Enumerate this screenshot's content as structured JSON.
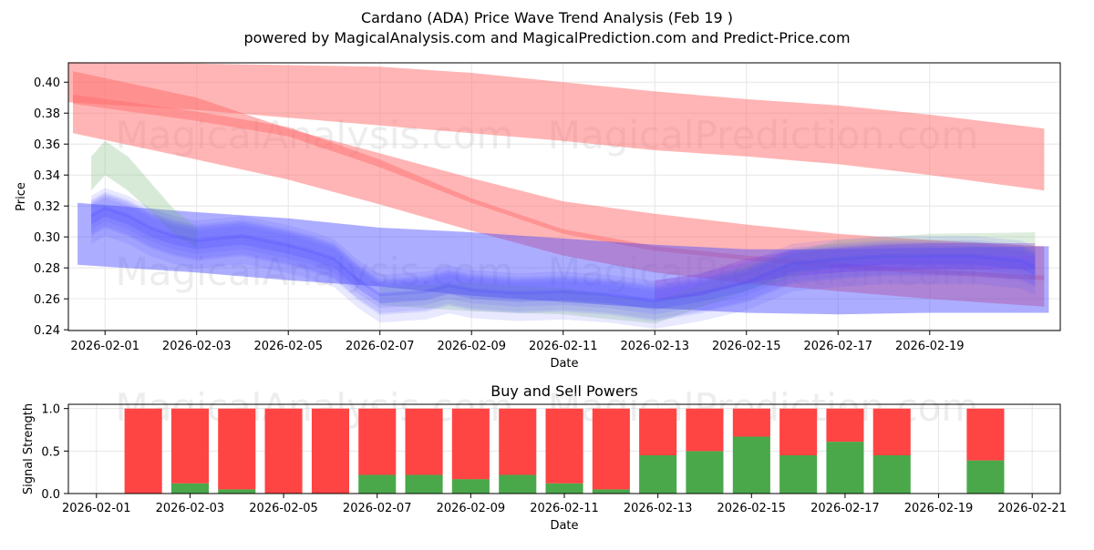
{
  "watermarks": [
    "MagicalAnalysis.com",
    "MagicalPrediction.com"
  ],
  "colors": {
    "red_band": "#ff6b6b",
    "blue_band": "#4a4aff",
    "green_band": "#7cbb7c",
    "buy": "#4aa84a",
    "sell": "#ff4444"
  },
  "chart_data": [
    {
      "type": "area",
      "title": "Cardano (ADA) Price Wave Trend Analysis (Feb 19 )",
      "subtitle": "powered by MagicalAnalysis.com and MagicalPrediction.com and Predict-Price.com",
      "xlabel": "Date",
      "ylabel": "Price",
      "x_tick_labels": [
        "2026-02-01",
        "2026-02-03",
        "2026-02-05",
        "2026-02-07",
        "2026-02-09",
        "2026-02-11",
        "2026-02-13",
        "2026-02-15",
        "2026-02-17",
        "2026-02-19"
      ],
      "y_tick_labels": [
        "0.24",
        "0.26",
        "0.28",
        "0.30",
        "0.32",
        "0.34",
        "0.36",
        "0.38",
        "0.40"
      ],
      "xlim": [
        -0.8,
        20.85
      ],
      "ylim": [
        0.2395,
        0.4125
      ],
      "grid": true,
      "bands": [
        {
          "name": "red upper",
          "color": "red",
          "opacity": 0.5,
          "x": [
            -0.8,
            2,
            4,
            6,
            8,
            10,
            12,
            14,
            16,
            18,
            20.5
          ],
          "upper": [
            0.413,
            0.412,
            0.411,
            0.41,
            0.406,
            0.4,
            0.394,
            0.389,
            0.385,
            0.379,
            0.37
          ],
          "lower": [
            0.387,
            0.382,
            0.377,
            0.372,
            0.367,
            0.362,
            0.356,
            0.352,
            0.347,
            0.34,
            0.33
          ]
        },
        {
          "name": "red lower",
          "color": "red",
          "opacity": 0.5,
          "x": [
            -0.7,
            2,
            4,
            6,
            8,
            10,
            12,
            14,
            16,
            18,
            20.5
          ],
          "upper": [
            0.407,
            0.39,
            0.37,
            0.354,
            0.338,
            0.323,
            0.315,
            0.308,
            0.302,
            0.298,
            0.294
          ],
          "lower": [
            0.367,
            0.35,
            0.337,
            0.321,
            0.304,
            0.288,
            0.277,
            0.27,
            0.265,
            0.26,
            0.255
          ]
        },
        {
          "name": "red lower deep",
          "color": "red",
          "opacity": 0.45,
          "x": [
            -0.7,
            2,
            4,
            6,
            8,
            10,
            12,
            14,
            16,
            18,
            20.5
          ],
          "upper": [
            0.392,
            0.381,
            0.371,
            0.35,
            0.325,
            0.305,
            0.294,
            0.288,
            0.283,
            0.279,
            0.275
          ],
          "lower": [
            0.386,
            0.375,
            0.365,
            0.345,
            0.322,
            0.302,
            0.291,
            0.285,
            0.28,
            0.276,
            0.272
          ]
        },
        {
          "name": "blue wide",
          "color": "blue",
          "opacity": 0.45,
          "x": [
            -0.6,
            2,
            4,
            6,
            8,
            10,
            12,
            14,
            16,
            18,
            20.6
          ],
          "upper": [
            0.322,
            0.316,
            0.312,
            0.306,
            0.303,
            0.299,
            0.295,
            0.292,
            0.292,
            0.293,
            0.294
          ],
          "lower": [
            0.282,
            0.277,
            0.272,
            0.268,
            0.262,
            0.258,
            0.254,
            0.251,
            0.25,
            0.251,
            0.251
          ]
        },
        {
          "name": "green early",
          "color": "green",
          "opacity": 0.3,
          "x": [
            -0.3,
            0,
            0.5,
            1,
            1.5,
            2
          ],
          "upper": [
            0.352,
            0.362,
            0.352,
            0.335,
            0.318,
            0.306
          ],
          "lower": [
            0.33,
            0.34,
            0.33,
            0.316,
            0.302,
            0.293
          ]
        },
        {
          "name": "green late",
          "color": "green",
          "opacity": 0.25,
          "x": [
            6,
            8,
            10,
            12,
            14,
            16,
            18,
            20.3
          ],
          "upper": [
            0.268,
            0.27,
            0.267,
            0.258,
            0.282,
            0.298,
            0.302,
            0.303
          ],
          "lower": [
            0.256,
            0.252,
            0.25,
            0.244,
            0.265,
            0.283,
            0.288,
            0.288
          ]
        },
        {
          "name": "purple end",
          "color": "purple",
          "opacity": 0.35,
          "x": [
            12,
            13,
            14,
            15,
            16,
            17,
            18,
            19,
            20,
            20.3
          ],
          "upper": [
            0.272,
            0.276,
            0.286,
            0.291,
            0.293,
            0.295,
            0.296,
            0.296,
            0.296,
            0.296
          ],
          "lower": [
            0.259,
            0.262,
            0.27,
            0.275,
            0.277,
            0.278,
            0.279,
            0.279,
            0.279,
            0.279
          ]
        }
      ],
      "waves": {
        "color": "blue",
        "x": [
          -0.3,
          0,
          0.5,
          1,
          1.5,
          2,
          3,
          4,
          4.5,
          5,
          5.5,
          6,
          7,
          7.5,
          8,
          9,
          10,
          11,
          12,
          13,
          14,
          15,
          16,
          17,
          18,
          19,
          20,
          20.3
        ],
        "center": [
          0.313,
          0.318,
          0.313,
          0.305,
          0.3,
          0.297,
          0.3,
          0.294,
          0.29,
          0.285,
          0.272,
          0.262,
          0.264,
          0.268,
          0.265,
          0.263,
          0.264,
          0.262,
          0.258,
          0.263,
          0.27,
          0.282,
          0.285,
          0.287,
          0.287,
          0.287,
          0.284,
          0.28
        ],
        "offsets": [
          -0.014,
          -0.009,
          -0.005,
          -0.002,
          0.002,
          0.005,
          0.008,
          0.011
        ],
        "half_widths": [
          0.009,
          0.007,
          0.005,
          0.01,
          0.006,
          0.008,
          0.005,
          0.007
        ]
      }
    },
    {
      "type": "bar",
      "title": "Buy and Sell Powers",
      "xlabel": "Date",
      "ylabel": "Signal Strength",
      "x_tick_labels": [
        "2026-02-01",
        "2026-02-03",
        "2026-02-05",
        "2026-02-07",
        "2026-02-09",
        "2026-02-11",
        "2026-02-13",
        "2026-02-15",
        "2026-02-17",
        "2026-02-19",
        "2026-02-21"
      ],
      "y_tick_labels": [
        "0.0",
        "0.5",
        "1.0"
      ],
      "xlim": [
        -0.6,
        20.6
      ],
      "ylim": [
        0,
        1.05
      ],
      "grid": true,
      "categories": [
        "2026-02-02",
        "2026-02-03",
        "2026-02-04",
        "2026-02-05",
        "2026-02-06",
        "2026-02-07",
        "2026-02-08",
        "2026-02-09",
        "2026-02-10",
        "2026-02-11",
        "2026-02-12",
        "2026-02-13",
        "2026-02-14",
        "2026-02-15",
        "2026-02-16",
        "2026-02-17",
        "2026-02-18",
        "2026-02-20"
      ],
      "x": [
        1,
        2,
        3,
        4,
        5,
        6,
        7,
        8,
        9,
        10,
        11,
        12,
        13,
        14,
        15,
        16,
        17,
        19
      ],
      "series": [
        {
          "name": "Buy",
          "color": "buy",
          "values": [
            0.0,
            0.12,
            0.05,
            0.0,
            0.0,
            0.22,
            0.22,
            0.17,
            0.22,
            0.12,
            0.05,
            0.45,
            0.5,
            0.67,
            0.45,
            0.61,
            0.45,
            0.39
          ]
        },
        {
          "name": "Sell",
          "color": "sell",
          "values": [
            1.0,
            0.88,
            0.95,
            1.0,
            1.0,
            0.78,
            0.78,
            0.83,
            0.78,
            0.88,
            0.95,
            0.55,
            0.5,
            0.33,
            0.55,
            0.39,
            0.55,
            0.61
          ]
        }
      ]
    }
  ]
}
